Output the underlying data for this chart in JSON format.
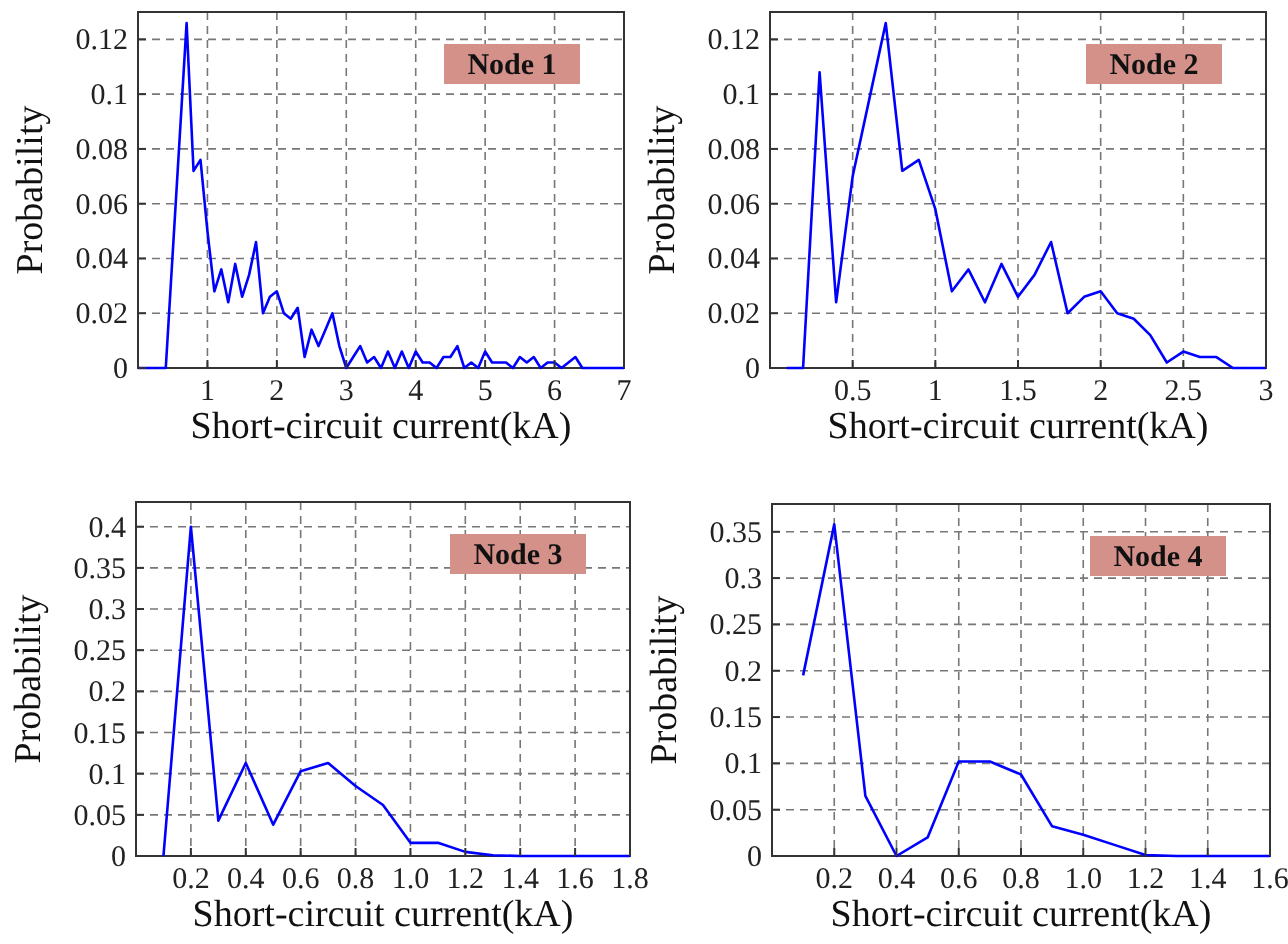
{
  "chart_data": [
    {
      "type": "line",
      "xlabel": "Short-circuit current(kA)",
      "ylabel": "Probability",
      "annotations": [
        "Node 1"
      ],
      "grid": true,
      "xlim": [
        0,
        7
      ],
      "ylim": [
        0,
        0.13
      ],
      "xticks": [
        1,
        2,
        3,
        4,
        5,
        6,
        7
      ],
      "yticks": [
        0,
        0.02,
        0.04,
        0.06,
        0.08,
        0.1,
        0.12
      ],
      "series": [
        {
          "color": "#0000ff",
          "x": [
            0,
            0.4,
            0.7,
            0.8,
            0.9,
            1.0,
            1.1,
            1.2,
            1.3,
            1.4,
            1.5,
            1.6,
            1.7,
            1.8,
            1.9,
            2.0,
            2.1,
            2.2,
            2.3,
            2.4,
            2.5,
            2.6,
            2.7,
            2.8,
            2.9,
            3.0,
            3.1,
            3.2,
            3.3,
            3.4,
            3.5,
            3.6,
            3.7,
            3.8,
            3.9,
            4.0,
            4.1,
            4.2,
            4.3,
            4.4,
            4.5,
            4.6,
            4.7,
            4.8,
            4.9,
            5.0,
            5.1,
            5.3,
            5.4,
            5.5,
            5.6,
            5.7,
            5.8,
            5.9,
            6.0,
            6.1,
            6.2,
            6.3,
            6.4,
            7.0
          ],
          "values": [
            0,
            0,
            0.126,
            0.072,
            0.076,
            0.05,
            0.028,
            0.036,
            0.024,
            0.038,
            0.026,
            0.034,
            0.046,
            0.02,
            0.026,
            0.028,
            0.02,
            0.018,
            0.022,
            0.004,
            0.014,
            0.008,
            0.014,
            0.02,
            0.008,
            0,
            0.004,
            0.008,
            0.002,
            0.004,
            0,
            0.006,
            0,
            0.006,
            0,
            0.006,
            0.002,
            0.002,
            0,
            0.004,
            0.004,
            0.008,
            0,
            0.002,
            0,
            0.006,
            0.002,
            0.002,
            0,
            0.004,
            0.002,
            0.004,
            0,
            0.002,
            0.002,
            0,
            0.002,
            0.004,
            0,
            0
          ]
        }
      ]
    },
    {
      "type": "line",
      "xlabel": "Short-circuit current(kA)",
      "ylabel": "Probability",
      "annotations": [
        "Node 2"
      ],
      "grid": true,
      "xlim": [
        0,
        3
      ],
      "ylim": [
        0,
        0.13
      ],
      "xticks": [
        0.5,
        1,
        1.5,
        2,
        2.5,
        3
      ],
      "yticks": [
        0,
        0.02,
        0.04,
        0.06,
        0.08,
        0.1,
        0.12
      ],
      "series": [
        {
          "color": "#0000ff",
          "x": [
            0.1,
            0.2,
            0.3,
            0.4,
            0.5,
            0.6,
            0.7,
            0.8,
            0.9,
            1.0,
            1.1,
            1.2,
            1.3,
            1.4,
            1.5,
            1.6,
            1.7,
            1.8,
            1.9,
            2.0,
            2.1,
            2.2,
            2.3,
            2.4,
            2.5,
            2.6,
            2.7,
            2.8,
            2.9,
            3.0
          ],
          "values": [
            0,
            0,
            0.108,
            0.024,
            0.07,
            0.098,
            0.126,
            0.072,
            0.076,
            0.058,
            0.028,
            0.036,
            0.024,
            0.038,
            0.026,
            0.034,
            0.046,
            0.02,
            0.026,
            0.028,
            0.02,
            0.018,
            0.012,
            0.002,
            0.006,
            0.004,
            0.004,
            0,
            0,
            0
          ]
        }
      ]
    },
    {
      "type": "line",
      "xlabel": "Short-circuit current(kA)",
      "ylabel": "Probability",
      "annotations": [
        "Node 3"
      ],
      "grid": true,
      "xlim": [
        0,
        1.8
      ],
      "ylim": [
        0,
        0.43
      ],
      "xticks": [
        0.2,
        0.4,
        0.6,
        0.8,
        {
          "value": 1,
          "label": "1.0"
        },
        1.2,
        1.4,
        1.6,
        1.8
      ],
      "yticks": [
        0,
        0.05,
        0.1,
        0.15,
        0.2,
        0.25,
        0.3,
        0.35,
        0.4
      ],
      "series": [
        {
          "color": "#0000ff",
          "x": [
            0.1,
            0.2,
            0.3,
            0.4,
            0.5,
            0.6,
            0.7,
            0.8,
            0.9,
            1.0,
            1.1,
            1.2,
            1.3,
            1.4,
            1.5,
            1.6,
            1.7,
            1.8
          ],
          "values": [
            0,
            0.4,
            0.043,
            0.113,
            0.038,
            0.103,
            0.113,
            0.085,
            0.062,
            0.016,
            0.016,
            0.005,
            0.001,
            0,
            0,
            0,
            0,
            0
          ]
        }
      ]
    },
    {
      "type": "line",
      "xlabel": "Short-circuit current(kA)",
      "ylabel": "Probability",
      "annotations": [
        "Node 4"
      ],
      "grid": true,
      "xlim": [
        0,
        1.6
      ],
      "ylim": [
        0,
        0.38
      ],
      "xticks": [
        0.2,
        0.4,
        0.6,
        0.8,
        {
          "value": 1,
          "label": "1.0"
        },
        1.2,
        1.4,
        1.6
      ],
      "yticks": [
        0,
        0.05,
        0.1,
        0.15,
        0.2,
        0.25,
        0.3,
        0.35
      ],
      "series": [
        {
          "color": "#0000ff",
          "x": [
            0.1,
            0.2,
            0.3,
            0.4,
            0.5,
            0.6,
            0.7,
            0.8,
            0.9,
            1.0,
            1.1,
            1.2,
            1.3,
            1.4,
            1.5,
            1.6
          ],
          "values": [
            0.195,
            0.358,
            0.065,
            0,
            0.02,
            0.102,
            0.102,
            0.088,
            0.032,
            0.023,
            0.012,
            0.001,
            0,
            0,
            0,
            0
          ]
        }
      ]
    }
  ]
}
